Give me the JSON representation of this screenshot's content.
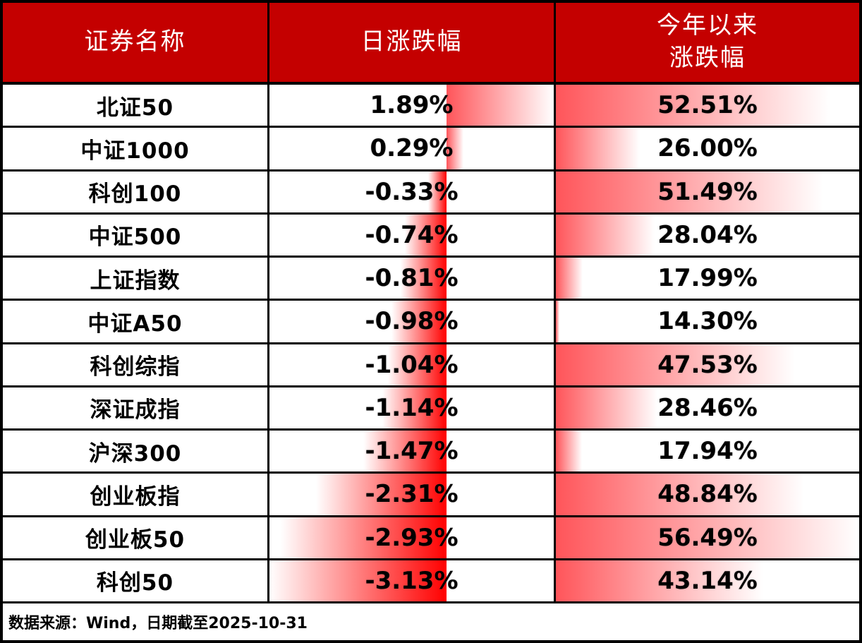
{
  "colors": {
    "header_bg": "#C40000",
    "header_text": "#FFFFFF",
    "border": "#000000",
    "positive_bar": "#FF555A",
    "negative_bar": "#FF0000",
    "value_text": "#000000"
  },
  "table": {
    "header": {
      "name": "证券名称",
      "daily": "日涨跌幅",
      "ytd_line1": "今年以来",
      "ytd_line2": "涨跌幅"
    },
    "rows": [
      {
        "name": "北证50",
        "daily": 1.89,
        "ytd": 52.51
      },
      {
        "name": "中证1000",
        "daily": 0.29,
        "ytd": 26.0
      },
      {
        "name": "科创100",
        "daily": -0.33,
        "ytd": 51.49
      },
      {
        "name": "中证500",
        "daily": -0.74,
        "ytd": 28.04
      },
      {
        "name": "上证指数",
        "daily": -0.81,
        "ytd": 17.99
      },
      {
        "name": "中证A50",
        "daily": -0.98,
        "ytd": 14.3
      },
      {
        "name": "科创综指",
        "daily": -1.04,
        "ytd": 47.53
      },
      {
        "name": "深证成指",
        "daily": -1.14,
        "ytd": 28.46
      },
      {
        "name": "沪深300",
        "daily": -1.47,
        "ytd": 17.94
      },
      {
        "name": "创业板指",
        "daily": -2.31,
        "ytd": 48.84
      },
      {
        "name": "创业板50",
        "daily": -2.93,
        "ytd": 56.49
      },
      {
        "name": "科创50",
        "daily": -3.13,
        "ytd": 43.14
      }
    ],
    "footer": "数据来源：Wind，日期截至2025-10-31"
  },
  "chart_data": {
    "type": "table",
    "categories": [
      "北证50",
      "中证1000",
      "科创100",
      "中证500",
      "上证指数",
      "中证A50",
      "科创综指",
      "深证成指",
      "沪深300",
      "创业板指",
      "创业板50",
      "科创50"
    ],
    "series": [
      {
        "name": "日涨跌幅",
        "values": [
          1.89,
          0.29,
          -0.33,
          -0.74,
          -0.81,
          -0.98,
          -1.04,
          -1.14,
          -1.47,
          -2.31,
          -2.93,
          -3.13
        ]
      },
      {
        "name": "今年以来涨跌幅",
        "values": [
          52.51,
          26.0,
          51.49,
          28.04,
          17.99,
          14.3,
          47.53,
          28.46,
          17.94,
          48.84,
          56.49,
          43.14
        ]
      }
    ],
    "value_suffix": "%",
    "bar_style": "gradient-databar",
    "daily_axis": {
      "min": -3.13,
      "max": 1.89
    },
    "ytd_axis": {
      "min": 14.3,
      "max": 56.49
    },
    "legend_position": "none",
    "grid": false
  }
}
